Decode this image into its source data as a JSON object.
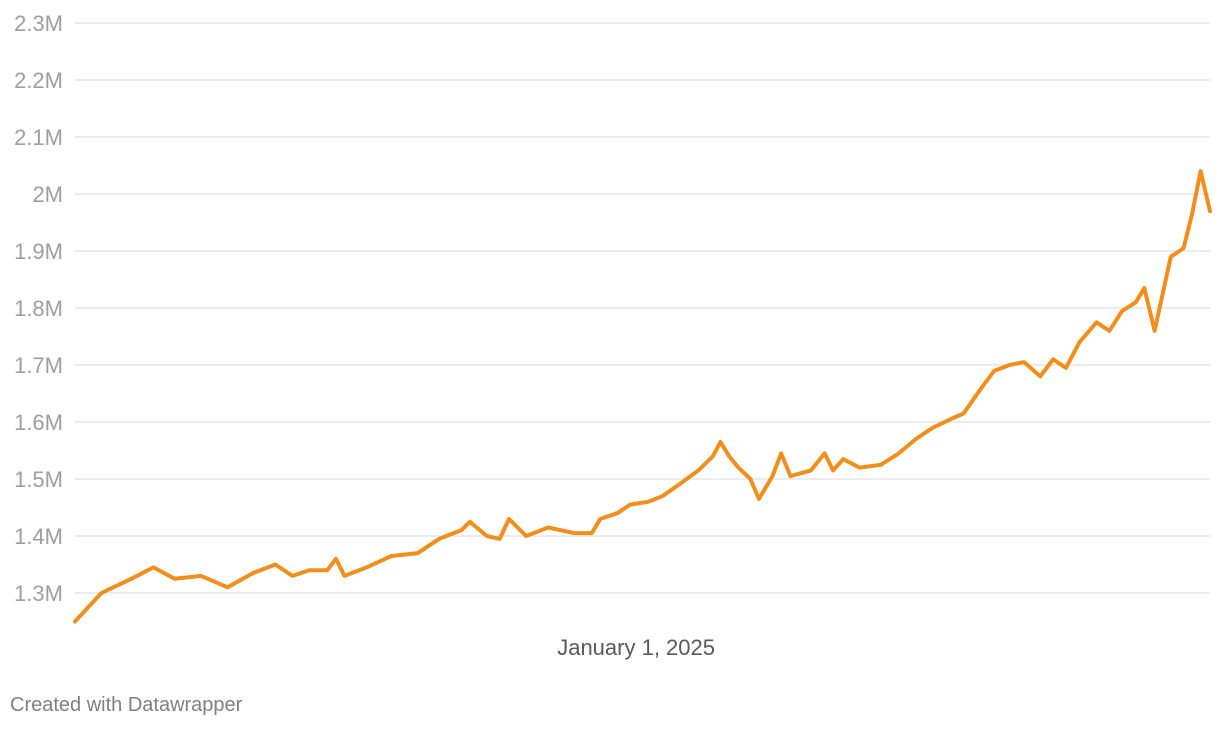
{
  "chart_data": {
    "type": "line",
    "title": "",
    "xlabel": "",
    "ylabel": "",
    "x_tick_labels": [
      {
        "x": "2025-01-01",
        "label": "January 1, 2025"
      }
    ],
    "y_ticks": [
      1300000,
      1400000,
      1500000,
      1600000,
      1700000,
      1800000,
      1900000,
      2000000,
      2100000,
      2200000,
      2300000
    ],
    "y_tick_labels": [
      "1.3M",
      "1.4M",
      "1.5M",
      "1.6M",
      "1.7M",
      "1.8M",
      "1.9M",
      "2M",
      "2.1M",
      "2.2M",
      "2.3M"
    ],
    "xlim": [
      "2023-03-15",
      "2026-11-05"
    ],
    "ylim": [
      1300000,
      2300000
    ],
    "grid": true,
    "legend": "none",
    "series": [
      {
        "color": "#f28e1c",
        "points": [
          [
            "2023-03-15",
            1250000
          ],
          [
            "2023-04-15",
            1300000
          ],
          [
            "2023-05-20",
            1325000
          ],
          [
            "2023-06-15",
            1345000
          ],
          [
            "2023-07-10",
            1325000
          ],
          [
            "2023-08-10",
            1330000
          ],
          [
            "2023-09-10",
            1310000
          ],
          [
            "2023-10-10",
            1335000
          ],
          [
            "2023-11-05",
            1350000
          ],
          [
            "2023-11-25",
            1330000
          ],
          [
            "2023-12-15",
            1340000
          ],
          [
            "2024-01-05",
            1340000
          ],
          [
            "2024-01-15",
            1360000
          ],
          [
            "2024-01-25",
            1330000
          ],
          [
            "2024-02-20",
            1345000
          ],
          [
            "2024-03-20",
            1365000
          ],
          [
            "2024-04-20",
            1370000
          ],
          [
            "2024-05-15",
            1395000
          ],
          [
            "2024-06-10",
            1410000
          ],
          [
            "2024-06-20",
            1425000
          ],
          [
            "2024-07-10",
            1400000
          ],
          [
            "2024-07-25",
            1395000
          ],
          [
            "2024-08-05",
            1430000
          ],
          [
            "2024-08-25",
            1400000
          ],
          [
            "2024-09-20",
            1415000
          ],
          [
            "2024-10-20",
            1405000
          ],
          [
            "2024-11-10",
            1405000
          ],
          [
            "2024-11-20",
            1430000
          ],
          [
            "2024-12-10",
            1440000
          ],
          [
            "2024-12-25",
            1455000
          ],
          [
            "2025-01-15",
            1460000
          ],
          [
            "2025-02-01",
            1470000
          ],
          [
            "2025-02-20",
            1490000
          ],
          [
            "2025-03-15",
            1515000
          ],
          [
            "2025-04-01",
            1540000
          ],
          [
            "2025-04-10",
            1565000
          ],
          [
            "2025-04-20",
            1540000
          ],
          [
            "2025-05-01",
            1520000
          ],
          [
            "2025-05-15",
            1500000
          ],
          [
            "2025-05-25",
            1465000
          ],
          [
            "2025-06-10",
            1505000
          ],
          [
            "2025-06-20",
            1545000
          ],
          [
            "2025-07-01",
            1505000
          ],
          [
            "2025-07-25",
            1515000
          ],
          [
            "2025-08-10",
            1545000
          ],
          [
            "2025-08-20",
            1515000
          ],
          [
            "2025-09-01",
            1535000
          ],
          [
            "2025-09-20",
            1520000
          ],
          [
            "2025-10-15",
            1525000
          ],
          [
            "2025-11-05",
            1545000
          ],
          [
            "2025-11-25",
            1570000
          ],
          [
            "2025-12-15",
            1590000
          ],
          [
            "2026-01-05",
            1605000
          ],
          [
            "2026-01-20",
            1615000
          ],
          [
            "2026-02-10",
            1660000
          ],
          [
            "2026-02-25",
            1690000
          ],
          [
            "2026-03-15",
            1700000
          ],
          [
            "2026-04-01",
            1705000
          ],
          [
            "2026-04-20",
            1680000
          ],
          [
            "2026-05-05",
            1710000
          ],
          [
            "2026-05-20",
            1695000
          ],
          [
            "2026-06-05",
            1740000
          ],
          [
            "2026-06-25",
            1775000
          ],
          [
            "2026-07-10",
            1760000
          ],
          [
            "2026-07-25",
            1795000
          ],
          [
            "2026-08-10",
            1810000
          ],
          [
            "2026-08-20",
            1835000
          ],
          [
            "2026-09-01",
            1760000
          ],
          [
            "2026-09-20",
            1890000
          ],
          [
            "2026-10-05",
            1905000
          ],
          [
            "2026-10-15",
            1965000
          ],
          [
            "2026-10-25",
            2040000
          ],
          [
            "2026-11-05",
            1970000
          ]
        ]
      }
    ]
  },
  "footer": {
    "credit": "Created with Datawrapper"
  }
}
